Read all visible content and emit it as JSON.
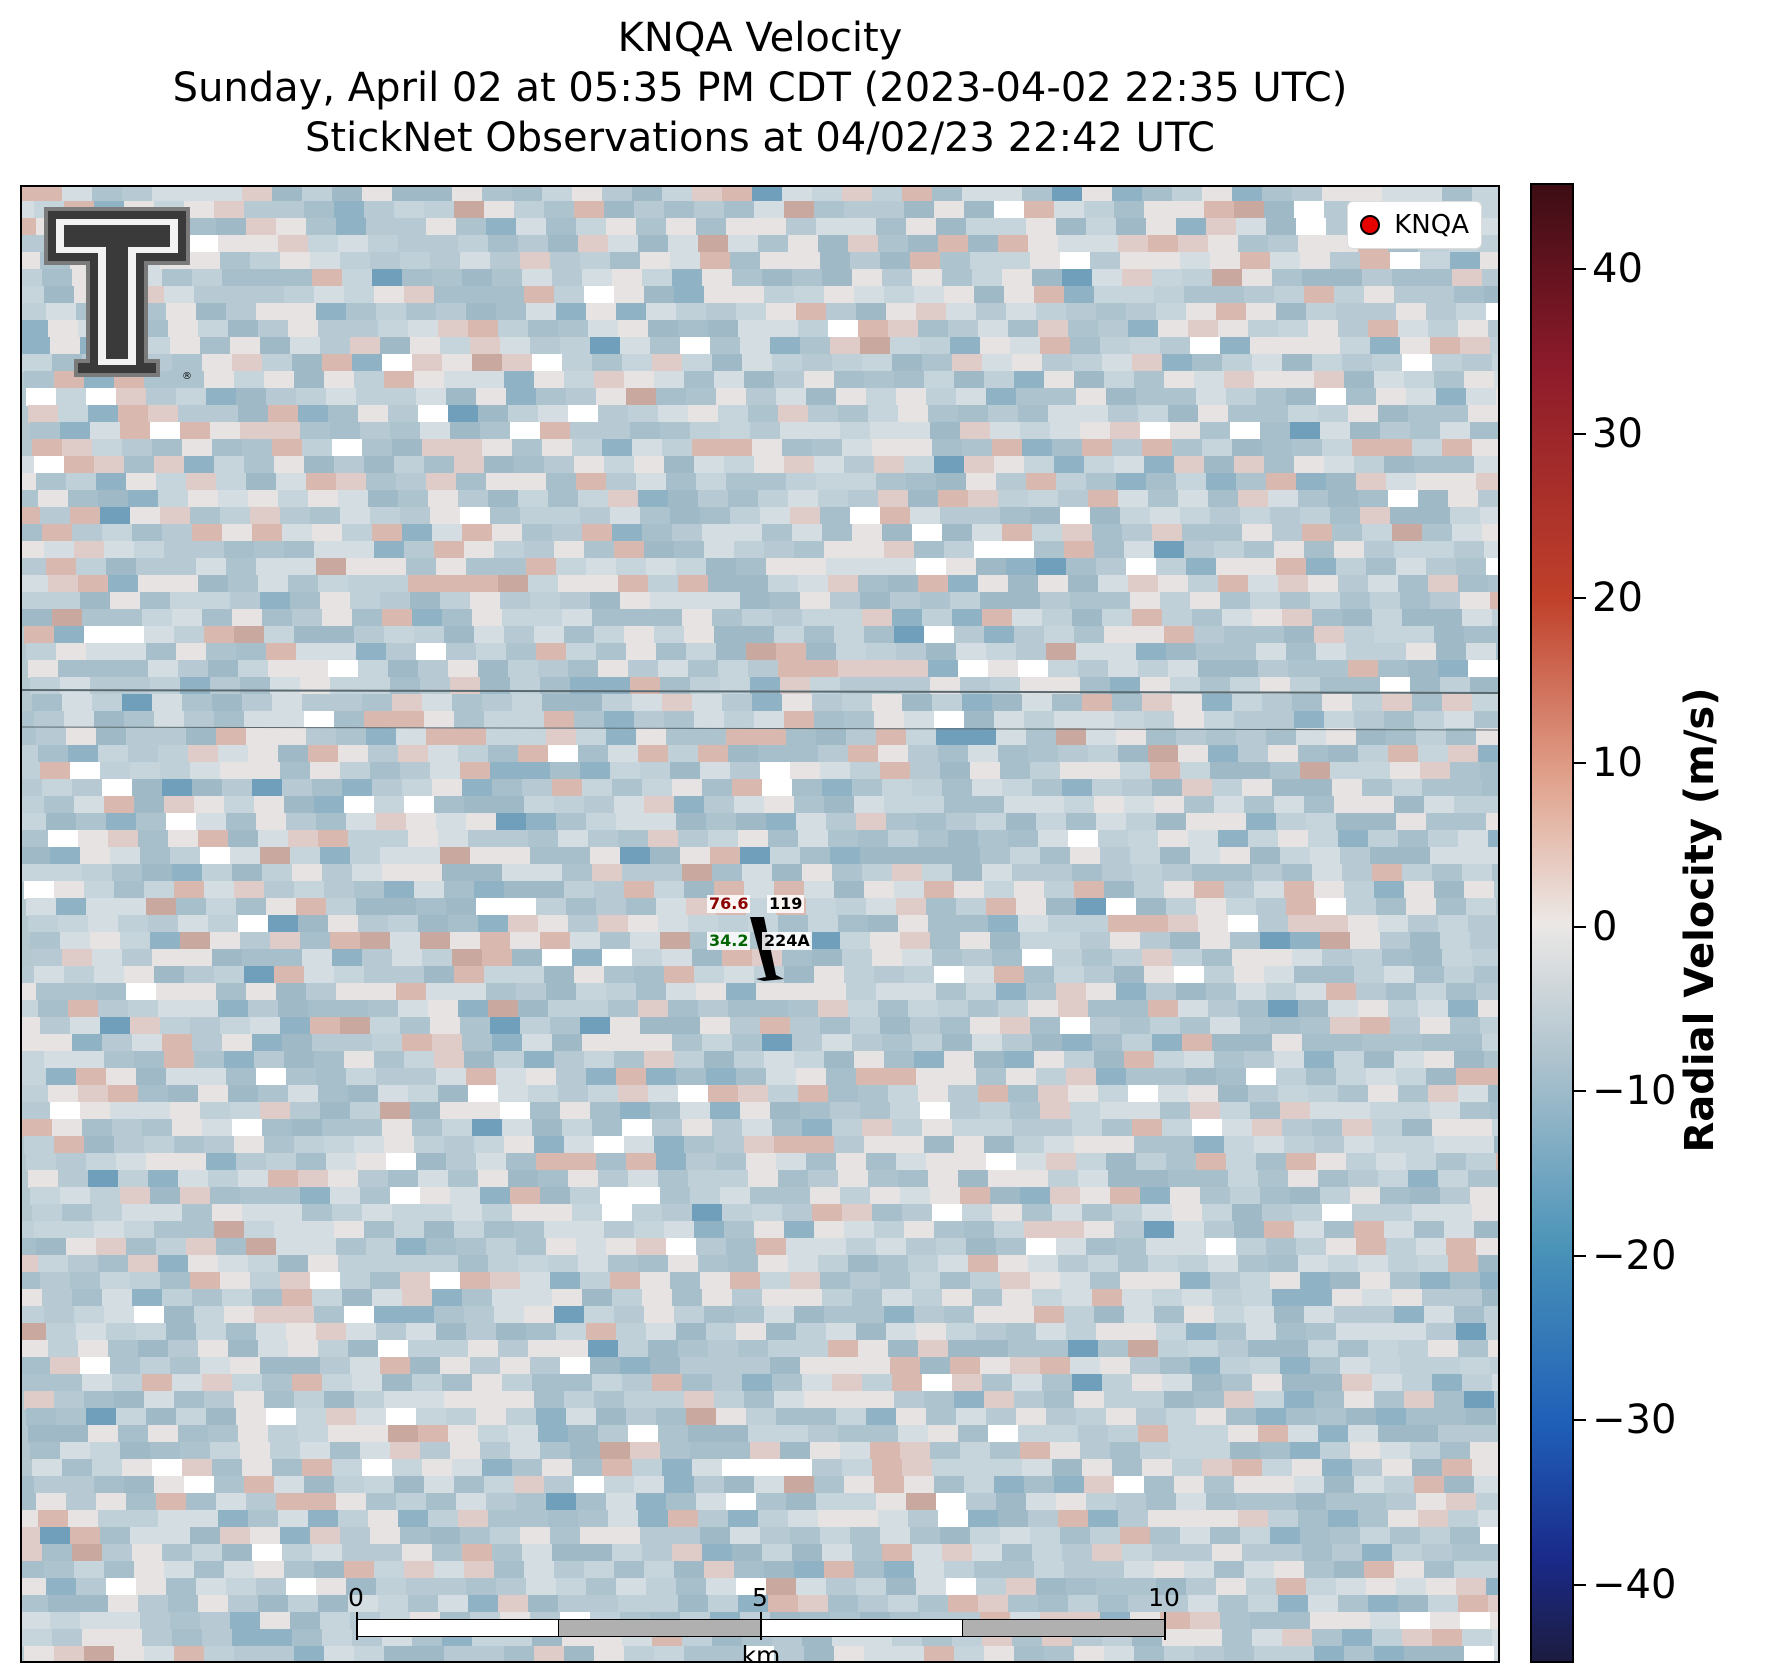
{
  "title": {
    "line1": "KNQA Velocity",
    "line2": "Sunday, April 02 at 05:35 PM CDT (2023-04-02 22:35 UTC)",
    "line3": "StickNet Observations at 04/02/23 22:42 UTC"
  },
  "legend": {
    "label": "KNQA",
    "marker_color": "#e60000"
  },
  "logo": {
    "name": "texas-tech-double-t-logo",
    "mark": "®"
  },
  "station": {
    "temp": "76.6",
    "temp_color": "#8b0000",
    "dewpoint": "34.2",
    "dewpoint_color": "#006400",
    "top_id": "119",
    "id": "224A"
  },
  "scalebar": {
    "labels": [
      "0",
      "5",
      "10"
    ],
    "unit": "km"
  },
  "colorbar": {
    "label": "Radial Velocity (m/s)",
    "ticks": [
      "40",
      "30",
      "20",
      "10",
      "0",
      "−10",
      "−20",
      "−30",
      "−40"
    ],
    "vmin": -45,
    "vmax": 45,
    "colors": [
      "#3d0d14",
      "#8b1a2a",
      "#c0402a",
      "#e0a08a",
      "#ece8e6",
      "#a9c0cc",
      "#4a93b8",
      "#1f5fb8",
      "#1c1c40"
    ]
  }
}
